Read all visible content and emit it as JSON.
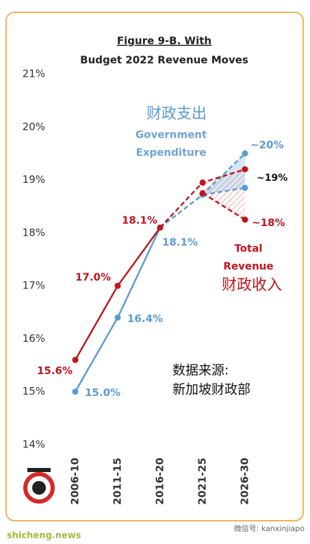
{
  "chart_data": {
    "type": "line",
    "title_lines": [
      "Figure 9-B. With",
      "Budget 2022 Revenue Moves"
    ],
    "categories": [
      "2006-10",
      "2011-15",
      "2016-20",
      "2021-25",
      "2026-30"
    ],
    "projection_start": "2016-20",
    "ylim": [
      14,
      21
    ],
    "yticks": [
      {
        "value": 14,
        "label": "14%"
      },
      {
        "value": 15,
        "label": "15%"
      },
      {
        "value": 16,
        "label": "16%"
      },
      {
        "value": 17,
        "label": "17%"
      },
      {
        "value": 18,
        "label": "18%"
      },
      {
        "value": 19,
        "label": "19%"
      },
      {
        "value": 20,
        "label": "20%"
      },
      {
        "value": 21,
        "label": "21%"
      }
    ],
    "series": [
      {
        "name": "Government Expenditure",
        "color": "#5b9bd5",
        "values": [
          15.0,
          16.4,
          18.1,
          18.72,
          19.5
        ],
        "value_labels": [
          "15.0%",
          "16.4%",
          "18.1%",
          null,
          "~20%"
        ]
      },
      {
        "color": "#5b9bd5",
        "values": [
          null,
          null,
          null,
          18.72,
          18.85
        ]
      },
      {
        "name": "Total Revenue",
        "color": "#c0161f",
        "values": [
          15.6,
          17.0,
          18.1,
          18.95,
          19.2
        ],
        "value_labels": [
          "15.6%",
          "17.0%",
          "18.1%",
          null,
          null
        ]
      },
      {
        "color": "#c0161f",
        "values": [
          null,
          null,
          null,
          18.75,
          18.25
        ],
        "value_labels": [
          null,
          null,
          null,
          null,
          "~18%"
        ]
      }
    ],
    "annotations": {
      "middle_label": "~19%",
      "expenditure_cn": "财政支出",
      "expenditure_lines": [
        "Government",
        "Expenditure"
      ],
      "revenue_lines": [
        "Total",
        "Revenue"
      ],
      "revenue_cn": "财政收入",
      "source_lines": [
        "数据来源:",
        "新加坡财政部"
      ]
    }
  },
  "footer": {
    "site": "shicheng.news",
    "wechat": "微信号: kanxinjiapo"
  }
}
